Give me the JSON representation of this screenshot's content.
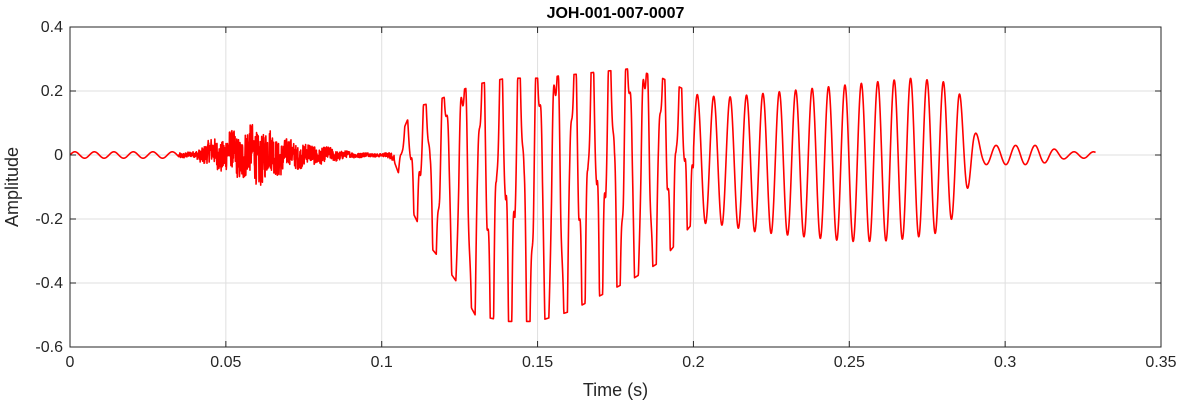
{
  "chart_data": {
    "type": "line",
    "title": "JOH-001-007-0007",
    "xlabel": "Time (s)",
    "ylabel": "Amplitude",
    "xlim": [
      0,
      0.35
    ],
    "ylim": [
      -0.6,
      0.4
    ],
    "grid": true,
    "xticks": [
      0,
      0.05,
      0.1,
      0.15,
      0.2,
      0.25,
      0.3,
      0.35
    ],
    "xtick_labels": [
      "0",
      "0.05",
      "0.1",
      "0.15",
      "0.2",
      "0.25",
      "0.3",
      "0.35"
    ],
    "yticks": [
      -0.6,
      -0.4,
      -0.2,
      0,
      0.2,
      0.4
    ],
    "ytick_labels": [
      "-0.6",
      "-0.4",
      "-0.2",
      "0",
      "0.2",
      "0.4"
    ],
    "series": [
      {
        "color": "#ff0000",
        "x_range": [
          0,
          0.329
        ],
        "envelope": {
          "time": [
            0,
            0.02,
            0.04,
            0.043,
            0.05,
            0.06,
            0.07,
            0.08,
            0.09,
            0.1,
            0.104,
            0.11,
            0.115,
            0.12,
            0.125,
            0.13,
            0.14,
            0.15,
            0.16,
            0.17,
            0.18,
            0.19,
            0.2,
            0.21,
            0.22,
            0.23,
            0.24,
            0.25,
            0.26,
            0.27,
            0.28,
            0.285,
            0.29,
            0.293,
            0.3,
            0.31,
            0.32,
            0.329
          ],
          "max": [
            0.01,
            0.01,
            0.01,
            0.04,
            0.07,
            0.1,
            0.05,
            0.03,
            0.01,
            0.005,
            0.01,
            0.15,
            0.16,
            0.18,
            0.2,
            0.22,
            0.24,
            0.24,
            0.25,
            0.26,
            0.27,
            0.24,
            0.19,
            0.18,
            0.19,
            0.2,
            0.21,
            0.22,
            0.23,
            0.24,
            0.23,
            0.2,
            0.08,
            0.03,
            0.03,
            0.03,
            0.01,
            0.01
          ],
          "min": [
            -0.01,
            -0.01,
            -0.01,
            -0.03,
            -0.06,
            -0.1,
            -0.05,
            -0.03,
            -0.01,
            -0.005,
            -0.02,
            -0.18,
            -0.28,
            -0.34,
            -0.41,
            -0.5,
            -0.52,
            -0.52,
            -0.49,
            -0.44,
            -0.39,
            -0.33,
            -0.21,
            -0.22,
            -0.24,
            -0.25,
            -0.26,
            -0.27,
            -0.27,
            -0.26,
            -0.24,
            -0.17,
            -0.06,
            -0.03,
            -0.03,
            -0.03,
            -0.01,
            -0.01
          ]
        }
      }
    ]
  }
}
